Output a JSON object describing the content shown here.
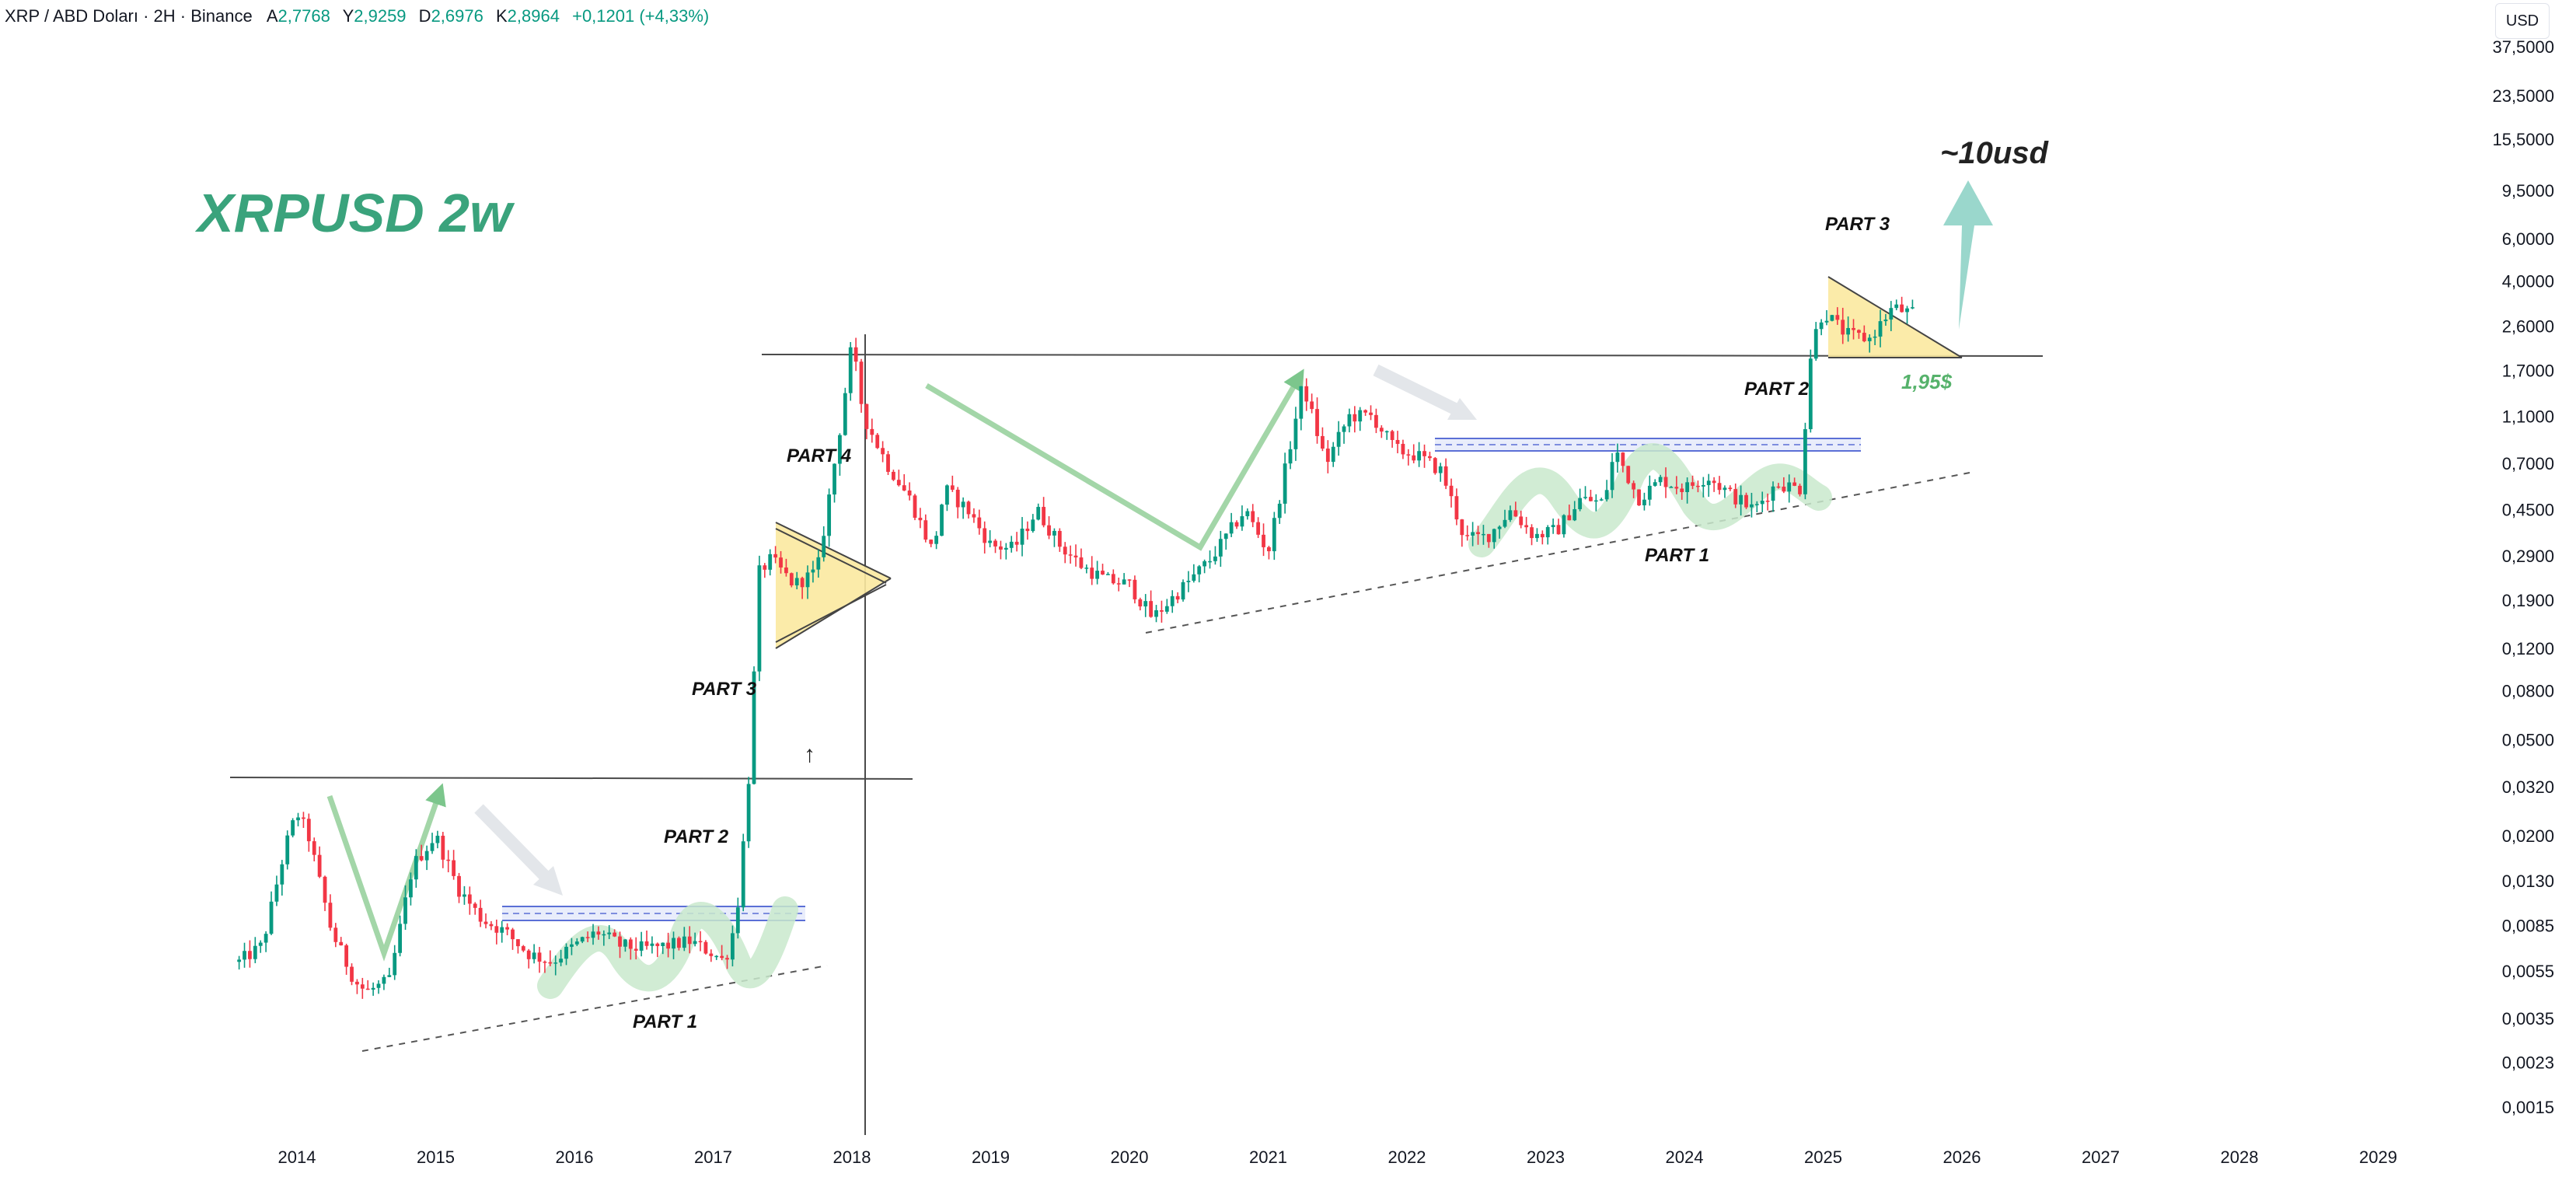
{
  "legend": {
    "symbol": "XRP / ABD Doları · 2H · Binance",
    "open_label": "A",
    "open": "2,7768",
    "high_label": "Y",
    "high": "2,9259",
    "low_label": "D",
    "low": "2,6976",
    "close_label": "K",
    "close": "2,8964",
    "change": "+0,1201 (+4,33%)"
  },
  "currency_button": "USD",
  "chart_data": {
    "type": "candlestick",
    "title": "XRPUSD 2w",
    "y_scale": "log",
    "price_axis": [
      "37,5000",
      "23,5000",
      "15,5000",
      "9,5000",
      "6,0000",
      "4,0000",
      "2,6000",
      "1,7000",
      "1,1000",
      "0,7000",
      "0,4500",
      "0,2900",
      "0,1900",
      "0,1200",
      "0,0800",
      "0,0500",
      "0,0320",
      "0,0200",
      "0,0130",
      "0,0085",
      "0,0055",
      "0,0035",
      "0,0023",
      "0,0015"
    ],
    "time_axis": [
      "2014",
      "2015",
      "2016",
      "2017",
      "2018",
      "2019",
      "2020",
      "2021",
      "2022",
      "2023",
      "2024",
      "2025",
      "2026",
      "2027",
      "2028",
      "2029"
    ],
    "price_path": [
      [
        "2013-08",
        0.006
      ],
      [
        "2013-10",
        0.007
      ],
      [
        "2013-12",
        0.018
      ],
      [
        "2014-01",
        0.025
      ],
      [
        "2014-02",
        0.02
      ],
      [
        "2014-04",
        0.008
      ],
      [
        "2014-06",
        0.005
      ],
      [
        "2014-07",
        0.0045
      ],
      [
        "2014-09",
        0.005
      ],
      [
        "2014-11",
        0.015
      ],
      [
        "2015-01",
        0.02
      ],
      [
        "2015-03",
        0.012
      ],
      [
        "2015-05",
        0.009
      ],
      [
        "2015-07",
        0.008
      ],
      [
        "2015-09",
        0.0065
      ],
      [
        "2015-11",
        0.006
      ],
      [
        "2016-01",
        0.007
      ],
      [
        "2016-03",
        0.008
      ],
      [
        "2016-05",
        0.007
      ],
      [
        "2016-07",
        0.0068
      ],
      [
        "2016-09",
        0.007
      ],
      [
        "2016-11",
        0.0073
      ],
      [
        "2017-01",
        0.0065
      ],
      [
        "2017-02",
        0.006
      ],
      [
        "2017-03",
        0.009
      ],
      [
        "2017-04",
        0.03
      ],
      [
        "2017-05",
        0.25
      ],
      [
        "2017-06",
        0.28
      ],
      [
        "2017-08",
        0.22
      ],
      [
        "2017-10",
        0.25
      ],
      [
        "2017-12",
        1.0
      ],
      [
        "2018-01",
        2.2
      ],
      [
        "2018-02",
        1.1
      ],
      [
        "2018-04",
        0.7
      ],
      [
        "2018-06",
        0.5
      ],
      [
        "2018-08",
        0.3
      ],
      [
        "2018-09",
        0.55
      ],
      [
        "2018-11",
        0.45
      ],
      [
        "2019-01",
        0.32
      ],
      [
        "2019-03",
        0.31
      ],
      [
        "2019-05",
        0.45
      ],
      [
        "2019-07",
        0.32
      ],
      [
        "2019-09",
        0.26
      ],
      [
        "2019-11",
        0.23
      ],
      [
        "2020-01",
        0.22
      ],
      [
        "2020-03",
        0.16
      ],
      [
        "2020-05",
        0.2
      ],
      [
        "2020-08",
        0.28
      ],
      [
        "2020-11",
        0.45
      ],
      [
        "2021-01",
        0.3
      ],
      [
        "2021-04",
        1.5
      ],
      [
        "2021-06",
        0.7
      ],
      [
        "2021-08",
        1.1
      ],
      [
        "2021-10",
        1.1
      ],
      [
        "2021-12",
        0.8
      ],
      [
        "2022-02",
        0.75
      ],
      [
        "2022-04",
        0.65
      ],
      [
        "2022-06",
        0.34
      ],
      [
        "2022-08",
        0.35
      ],
      [
        "2022-10",
        0.45
      ],
      [
        "2022-12",
        0.35
      ],
      [
        "2023-02",
        0.37
      ],
      [
        "2023-04",
        0.5
      ],
      [
        "2023-06",
        0.48
      ],
      [
        "2023-07",
        0.8
      ],
      [
        "2023-09",
        0.5
      ],
      [
        "2023-11",
        0.6
      ],
      [
        "2024-01",
        0.55
      ],
      [
        "2024-03",
        0.62
      ],
      [
        "2024-05",
        0.52
      ],
      [
        "2024-07",
        0.45
      ],
      [
        "2024-09",
        0.58
      ],
      [
        "2024-11",
        0.55
      ],
      [
        "2024-12",
        2.2
      ],
      [
        "2025-01",
        3.0
      ],
      [
        "2025-03",
        2.4
      ],
      [
        "2025-05",
        2.3
      ],
      [
        "2025-07",
        3.1
      ],
      [
        "2025-09",
        2.8964
      ]
    ]
  },
  "annotations": {
    "title": "XRPUSD 2w",
    "target": "~10usd",
    "support_price": "1,95$",
    "cycle1": {
      "part1": "PART 1",
      "part2": "PART 2",
      "part3": "PART 3",
      "part4": "PART 4"
    },
    "cycle2": {
      "part1": "PART 1",
      "part2": "PART 2",
      "part3": "PART 3"
    }
  },
  "colors": {
    "candle_up": "#089981",
    "candle_down": "#f23645",
    "title_green": "#3aa37c",
    "arrow_green": "#7cc68c",
    "target_arrow": "#8fd3c6",
    "triangle_fill": "#fbe9a0",
    "blue_band": "#5b6fd6",
    "wave_green": "#c9e9cd",
    "support_text": "#56b26b"
  }
}
